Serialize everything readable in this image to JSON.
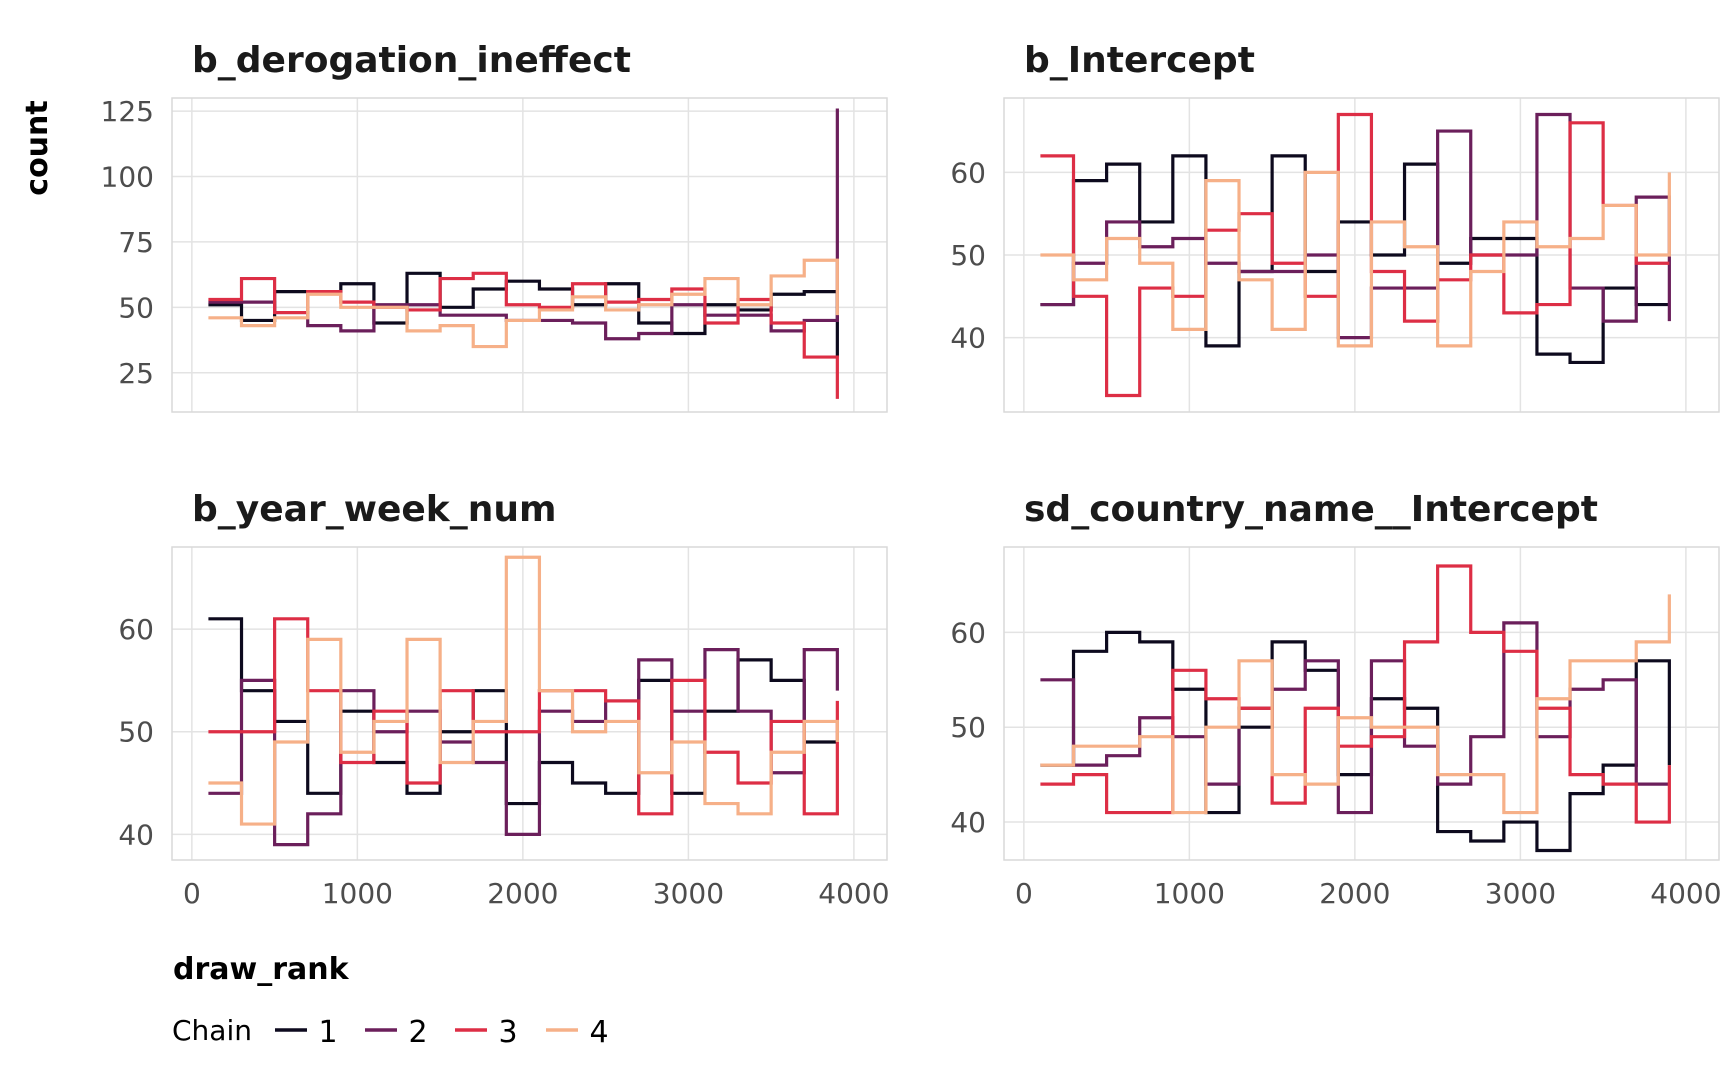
{
  "chart_data": {
    "type": "line",
    "y_axis_label": "count",
    "x_axis_label": "draw_rank",
    "x_ticks": [
      0,
      1000,
      2000,
      3000,
      4000
    ],
    "xlim": [
      -120,
      4200
    ],
    "legend": {
      "title": "Chain",
      "position": "bottom-left",
      "entries": [
        "1",
        "2",
        "3",
        "4"
      ]
    },
    "series_colors": {
      "1": "#0d0a1e",
      "2": "#6b1f5b",
      "3": "#dd2e45",
      "4": "#f6b088"
    },
    "bin_edges": [
      100,
      300,
      500,
      700,
      900,
      1100,
      1300,
      1500,
      1700,
      1900,
      2100,
      2300,
      2500,
      2700,
      2900,
      3100,
      3300,
      3500,
      3700,
      3900
    ],
    "grid": true,
    "panels": [
      {
        "title": "b_derogation_ineffect",
        "ylim": [
          10,
          130
        ],
        "y_ticks": [
          25,
          50,
          75,
          100,
          125
        ],
        "series": [
          {
            "name": "1",
            "values": [
              51,
              45,
              56,
              56,
              59,
              44,
              63,
              50,
              57,
              60,
              57,
              51,
              59,
              44,
              40,
              51,
              49,
              55,
              56
            ],
            "end": 31
          },
          {
            "name": "2",
            "values": [
              52,
              52,
              48,
              43,
              41,
              51,
              51,
              47,
              47,
              45,
              45,
              44,
              38,
              40,
              51,
              47,
              47,
              41,
              45
            ],
            "end": 126
          },
          {
            "name": "3",
            "values": [
              53,
              61,
              48,
              56,
              52,
              50,
              49,
              61,
              63,
              51,
              50,
              59,
              52,
              53,
              57,
              44,
              53,
              44,
              31
            ],
            "end": 15
          },
          {
            "name": "4",
            "values": [
              46,
              43,
              46,
              55,
              50,
              50,
              41,
              43,
              35,
              45,
              49,
              54,
              49,
              51,
              55,
              61,
              51,
              62,
              68
            ],
            "end": 47
          }
        ]
      },
      {
        "title": "b_Intercept",
        "ylim": [
          31,
          69
        ],
        "y_ticks": [
          40,
          50,
          60
        ],
        "series": [
          {
            "name": "1",
            "values": [
              44,
              59,
              61,
              54,
              62,
              39,
              48,
              62,
              48,
              54,
              50,
              61,
              49,
              52,
              52,
              38,
              37,
              46,
              44
            ],
            "end": 44
          },
          {
            "name": "2",
            "values": [
              44,
              49,
              54,
              51,
              52,
              49,
              48,
              48,
              50,
              40,
              46,
              46,
              65,
              50,
              50,
              67,
              46,
              42,
              57
            ],
            "end": 42
          },
          {
            "name": "3",
            "values": [
              62,
              45,
              33,
              46,
              45,
              53,
              55,
              49,
              45,
              67,
              48,
              42,
              47,
              50,
              43,
              44,
              66,
              56,
              49
            ],
            "end": 49
          },
          {
            "name": "4",
            "values": [
              50,
              47,
              52,
              49,
              41,
              59,
              47,
              41,
              60,
              39,
              54,
              51,
              39,
              48,
              54,
              51,
              52,
              56,
              50
            ],
            "end": 60
          }
        ]
      },
      {
        "title": "b_year_week_num",
        "ylim": [
          37.5,
          68
        ],
        "y_ticks": [
          40,
          50,
          60
        ],
        "series": [
          {
            "name": "1",
            "values": [
              61,
              54,
              51,
              44,
              52,
              47,
              44,
              50,
              54,
              43,
              47,
              45,
              44,
              55,
              44,
              52,
              57,
              55,
              49
            ],
            "end": 49
          },
          {
            "name": "2",
            "values": [
              44,
              55,
              39,
              42,
              54,
              50,
              52,
              49,
              47,
              40,
              52,
              51,
              53,
              57,
              52,
              58,
              52,
              46,
              58
            ],
            "end": 54
          },
          {
            "name": "3",
            "values": [
              50,
              50,
              61,
              54,
              47,
              52,
              45,
              54,
              50,
              50,
              54,
              54,
              53,
              42,
              55,
              48,
              45,
              51,
              42
            ],
            "end": 53
          },
          {
            "name": "4",
            "values": [
              45,
              41,
              49,
              59,
              48,
              51,
              59,
              47,
              51,
              67,
              54,
              50,
              51,
              46,
              49,
              43,
              42,
              48,
              51
            ],
            "end": 49
          }
        ]
      },
      {
        "title": "sd_country_name__Intercept",
        "ylim": [
          36,
          69
        ],
        "y_ticks": [
          40,
          50,
          60
        ],
        "series": [
          {
            "name": "1",
            "values": [
              46,
              58,
              60,
              59,
              54,
              41,
              50,
              59,
              56,
              45,
              53,
              52,
              39,
              38,
              40,
              37,
              43,
              46,
              57
            ],
            "end": 46
          },
          {
            "name": "2",
            "values": [
              55,
              46,
              47,
              51,
              49,
              44,
              52,
              54,
              57,
              41,
              57,
              48,
              44,
              49,
              61,
              49,
              54,
              55,
              44
            ],
            "end": 44
          },
          {
            "name": "3",
            "values": [
              44,
              45,
              41,
              41,
              56,
              53,
              52,
              42,
              52,
              48,
              49,
              59,
              67,
              60,
              58,
              52,
              45,
              44,
              40
            ],
            "end": 46
          },
          {
            "name": "4",
            "values": [
              46,
              48,
              48,
              49,
              41,
              50,
              57,
              45,
              44,
              51,
              50,
              50,
              45,
              45,
              41,
              53,
              57,
              57,
              59
            ],
            "end": 64
          }
        ]
      }
    ]
  }
}
